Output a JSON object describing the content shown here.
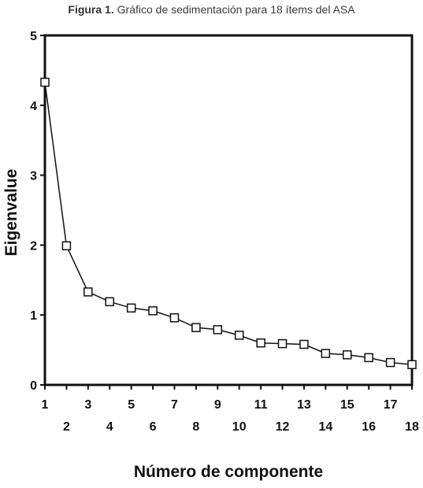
{
  "caption": {
    "label": "Figura 1.",
    "text": "Gráfico de sedimentación para 18 ítems del ASA"
  },
  "chart_data": {
    "type": "line",
    "xlabel": "Número de componente",
    "ylabel": "Eigenvalue",
    "xlim": [
      1,
      18
    ],
    "ylim": [
      0,
      5
    ],
    "yticks": [
      0,
      1,
      2,
      3,
      4,
      5
    ],
    "xticks_odd": [
      1,
      3,
      5,
      7,
      9,
      11,
      13,
      15,
      17
    ],
    "xticks_even": [
      2,
      4,
      6,
      8,
      10,
      12,
      14,
      16,
      18
    ],
    "grid": false,
    "marker": "open-square",
    "x": [
      1,
      2,
      3,
      4,
      5,
      6,
      7,
      8,
      9,
      10,
      11,
      12,
      13,
      14,
      15,
      16,
      17,
      18
    ],
    "values": [
      4.33,
      1.99,
      1.33,
      1.19,
      1.1,
      1.06,
      0.96,
      0.82,
      0.79,
      0.71,
      0.6,
      0.59,
      0.58,
      0.45,
      0.43,
      0.39,
      0.32,
      0.29
    ],
    "colors": {
      "line": "#111111",
      "marker_fill": "#ffffff",
      "frame": "#111111"
    }
  }
}
